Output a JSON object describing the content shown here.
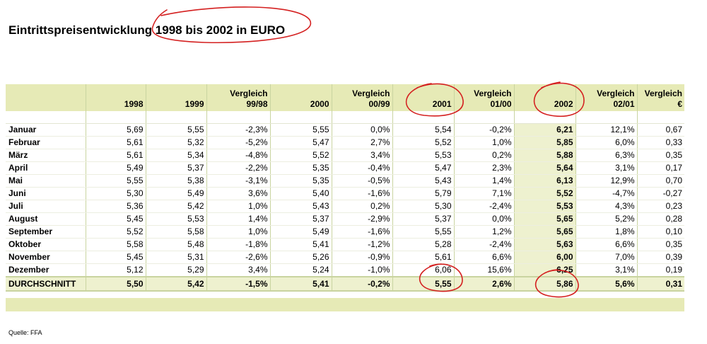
{
  "title": "Eintrittspreisentwicklung 1998 bis 2002 in EURO",
  "table": {
    "headers": [
      {
        "line1": "",
        "line2": ""
      },
      {
        "line1": "",
        "line2": "1998"
      },
      {
        "line1": "",
        "line2": "1999"
      },
      {
        "line1": "Vergleich",
        "line2": "99/98"
      },
      {
        "line1": "",
        "line2": "2000"
      },
      {
        "line1": "Vergleich",
        "line2": "00/99"
      },
      {
        "line1": "",
        "line2": "2001"
      },
      {
        "line1": "Vergleich",
        "line2": "01/00"
      },
      {
        "line1": "",
        "line2": "2002"
      },
      {
        "line1": "Vergleich",
        "line2": "02/01"
      },
      {
        "line1": "Vergleich",
        "line2": "€"
      }
    ],
    "rows": [
      {
        "month": "Januar",
        "cells": [
          "5,69",
          "5,55",
          "-2,3%",
          "5,55",
          "0,0%",
          "5,54",
          "-0,2%",
          "6,21",
          "12,1%",
          "0,67"
        ]
      },
      {
        "month": "Februar",
        "cells": [
          "5,61",
          "5,32",
          "-5,2%",
          "5,47",
          "2,7%",
          "5,52",
          "1,0%",
          "5,85",
          "6,0%",
          "0,33"
        ]
      },
      {
        "month": "März",
        "cells": [
          "5,61",
          "5,34",
          "-4,8%",
          "5,52",
          "3,4%",
          "5,53",
          "0,2%",
          "5,88",
          "6,3%",
          "0,35"
        ]
      },
      {
        "month": "April",
        "cells": [
          "5,49",
          "5,37",
          "-2,2%",
          "5,35",
          "-0,4%",
          "5,47",
          "2,3%",
          "5,64",
          "3,1%",
          "0,17"
        ]
      },
      {
        "month": "Mai",
        "cells": [
          "5,55",
          "5,38",
          "-3,1%",
          "5,35",
          "-0,5%",
          "5,43",
          "1,4%",
          "6,13",
          "12,9%",
          "0,70"
        ]
      },
      {
        "month": "Juni",
        "cells": [
          "5,30",
          "5,49",
          "3,6%",
          "5,40",
          "-1,6%",
          "5,79",
          "7,1%",
          "5,52",
          "-4,7%",
          "-0,27"
        ]
      },
      {
        "month": "Juli",
        "cells": [
          "5,36",
          "5,42",
          "1,0%",
          "5,43",
          "0,2%",
          "5,30",
          "-2,4%",
          "5,53",
          "4,3%",
          "0,23"
        ]
      },
      {
        "month": "August",
        "cells": [
          "5,45",
          "5,53",
          "1,4%",
          "5,37",
          "-2,9%",
          "5,37",
          "0,0%",
          "5,65",
          "5,2%",
          "0,28"
        ]
      },
      {
        "month": "September",
        "cells": [
          "5,52",
          "5,58",
          "1,0%",
          "5,49",
          "-1,6%",
          "5,55",
          "1,2%",
          "5,65",
          "1,8%",
          "0,10"
        ]
      },
      {
        "month": "Oktober",
        "cells": [
          "5,58",
          "5,48",
          "-1,8%",
          "5,41",
          "-1,2%",
          "5,28",
          "-2,4%",
          "5,63",
          "6,6%",
          "0,35"
        ]
      },
      {
        "month": "November",
        "cells": [
          "5,45",
          "5,31",
          "-2,6%",
          "5,26",
          "-0,9%",
          "5,61",
          "6,6%",
          "6,00",
          "7,0%",
          "0,39"
        ]
      },
      {
        "month": "Dezember",
        "cells": [
          "5,12",
          "5,29",
          "3,4%",
          "5,24",
          "-1,0%",
          "6,06",
          "15,6%",
          "6,25",
          "3,1%",
          "0,19"
        ]
      }
    ],
    "average": {
      "label": "DURCHSCHNITT",
      "cells": [
        "5,50",
        "5,42",
        "-1,5%",
        "5,41",
        "-0,2%",
        "5,55",
        "2,6%",
        "5,86",
        "5,6%",
        "0,31"
      ]
    }
  },
  "source": "Quelle: FFA",
  "colors": {
    "header_fill": "#e6eab6",
    "annotation_ink": "#d42020"
  }
}
